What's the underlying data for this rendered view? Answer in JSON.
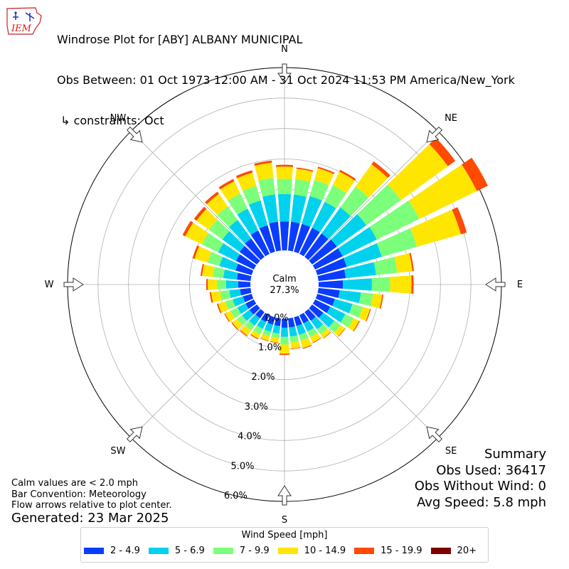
{
  "header": {
    "line1": "Windrose Plot for [ABY] ALBANY MUNICIPAL",
    "line2": "Obs Between: 01 Oct 1973 12:00 AM - 31 Oct 2024 11:53 PM America/New_York",
    "line3": " ↳ constraints: Oct"
  },
  "logo": {
    "text": "IEM"
  },
  "notes": {
    "line1": "Calm values are < 2.0 mph",
    "line2": "Bar Convention: Meteorology",
    "line3": "Flow arrows relative to plot center."
  },
  "generated": "Generated: 23 Mar 2025",
  "summary": {
    "title": "Summary",
    "obs_used": "Obs Used: 36417",
    "obs_without_wind": "Obs Without Wind: 0",
    "avg_speed": "Avg Speed: 5.8 mph"
  },
  "legend": {
    "title": "Wind Speed [mph]",
    "items": [
      {
        "label": "2 - 4.9",
        "color": "#0a3cff"
      },
      {
        "label": "5 - 6.9",
        "color": "#00d2ee"
      },
      {
        "label": "7 - 9.9",
        "color": "#7cff7a"
      },
      {
        "label": "10 - 14.9",
        "color": "#ffe600"
      },
      {
        "label": "15 - 19.9",
        "color": "#ff4a00"
      },
      {
        "label": "20+",
        "color": "#7f0000"
      }
    ]
  },
  "chart_data": {
    "type": "windrose",
    "calm_label": "Calm",
    "calm_value": "27.3%",
    "radial_unit": "%",
    "radial_ticks": [
      "0.0%",
      "1.0%",
      "2.0%",
      "3.0%",
      "4.0%",
      "5.0%",
      "6.0%"
    ],
    "radial_max": 6.0,
    "direction_labels": [
      "N",
      "NE",
      "E",
      "SE",
      "S",
      "SW",
      "W",
      "NW"
    ],
    "direction_label_angles": [
      0,
      45,
      90,
      135,
      180,
      225,
      270,
      315
    ],
    "sector_width_deg": 10,
    "speed_bins": [
      "2 - 4.9",
      "5 - 6.9",
      "7 - 9.9",
      "10 - 14.9",
      "15 - 19.9",
      "20+"
    ],
    "sectors": [
      {
        "dir": 0,
        "values": [
          0.95,
          0.9,
          0.5,
          0.4,
          0.06,
          0.0
        ]
      },
      {
        "dir": 10,
        "values": [
          0.95,
          0.9,
          0.5,
          0.35,
          0.04,
          0.0
        ]
      },
      {
        "dir": 20,
        "values": [
          0.95,
          0.95,
          0.55,
          0.4,
          0.05,
          0.0
        ]
      },
      {
        "dir": 30,
        "values": [
          0.95,
          0.95,
          0.6,
          0.5,
          0.06,
          0.0
        ]
      },
      {
        "dir": 40,
        "values": [
          0.95,
          1.05,
          0.85,
          0.9,
          0.12,
          0.0
        ]
      },
      {
        "dir": 50,
        "values": [
          1.0,
          1.2,
          1.4,
          1.9,
          0.3,
          0.0
        ]
      },
      {
        "dir": 60,
        "values": [
          1.0,
          1.25,
          1.55,
          2.1,
          0.4,
          0.0
        ]
      },
      {
        "dir": 70,
        "values": [
          1.0,
          1.2,
          1.2,
          1.5,
          0.2,
          0.0
        ]
      },
      {
        "dir": 80,
        "values": [
          0.9,
          1.0,
          0.7,
          0.5,
          0.05,
          0.0
        ]
      },
      {
        "dir": 90,
        "values": [
          0.8,
          0.95,
          0.6,
          0.7,
          0.07,
          0.0
        ]
      },
      {
        "dir": 100,
        "values": [
          0.7,
          0.7,
          0.4,
          0.3,
          0.04,
          0.0
        ]
      },
      {
        "dir": 110,
        "values": [
          0.6,
          0.6,
          0.35,
          0.25,
          0.03,
          0.0
        ]
      },
      {
        "dir": 120,
        "values": [
          0.55,
          0.55,
          0.3,
          0.2,
          0.03,
          0.0
        ]
      },
      {
        "dir": 130,
        "values": [
          0.45,
          0.45,
          0.25,
          0.18,
          0.02,
          0.0
        ]
      },
      {
        "dir": 140,
        "values": [
          0.35,
          0.35,
          0.2,
          0.15,
          0.02,
          0.0
        ]
      },
      {
        "dir": 150,
        "values": [
          0.3,
          0.3,
          0.2,
          0.2,
          0.02,
          0.0
        ]
      },
      {
        "dir": 160,
        "values": [
          0.3,
          0.3,
          0.2,
          0.25,
          0.03,
          0.0
        ]
      },
      {
        "dir": 170,
        "values": [
          0.3,
          0.3,
          0.2,
          0.2,
          0.02,
          0.0
        ]
      },
      {
        "dir": 180,
        "values": [
          0.3,
          0.3,
          0.25,
          0.3,
          0.04,
          0.0
        ]
      },
      {
        "dir": 190,
        "values": [
          0.25,
          0.25,
          0.15,
          0.15,
          0.02,
          0.0
        ]
      },
      {
        "dir": 200,
        "values": [
          0.25,
          0.25,
          0.15,
          0.15,
          0.02,
          0.0
        ]
      },
      {
        "dir": 210,
        "values": [
          0.25,
          0.25,
          0.2,
          0.15,
          0.03,
          0.0
        ]
      },
      {
        "dir": 220,
        "values": [
          0.25,
          0.3,
          0.2,
          0.2,
          0.03,
          0.0
        ]
      },
      {
        "dir": 230,
        "values": [
          0.3,
          0.3,
          0.2,
          0.2,
          0.03,
          0.0
        ]
      },
      {
        "dir": 240,
        "values": [
          0.3,
          0.3,
          0.25,
          0.2,
          0.03,
          0.0
        ]
      },
      {
        "dir": 250,
        "values": [
          0.3,
          0.35,
          0.25,
          0.25,
          0.04,
          0.0
        ]
      },
      {
        "dir": 260,
        "values": [
          0.35,
          0.35,
          0.3,
          0.3,
          0.05,
          0.0
        ]
      },
      {
        "dir": 270,
        "values": [
          0.4,
          0.4,
          0.3,
          0.3,
          0.05,
          0.0
        ]
      },
      {
        "dir": 280,
        "values": [
          0.45,
          0.45,
          0.35,
          0.35,
          0.05,
          0.0
        ]
      },
      {
        "dir": 290,
        "values": [
          0.55,
          0.55,
          0.4,
          0.45,
          0.07,
          0.0
        ]
      },
      {
        "dir": 300,
        "values": [
          0.65,
          0.65,
          0.6,
          0.6,
          0.1,
          0.0
        ]
      },
      {
        "dir": 310,
        "values": [
          0.7,
          0.7,
          0.55,
          0.5,
          0.1,
          0.0
        ]
      },
      {
        "dir": 320,
        "values": [
          0.75,
          0.75,
          0.55,
          0.5,
          0.09,
          0.0
        ]
      },
      {
        "dir": 330,
        "values": [
          0.85,
          0.8,
          0.55,
          0.45,
          0.08,
          0.0
        ]
      },
      {
        "dir": 340,
        "values": [
          0.9,
          0.85,
          0.5,
          0.45,
          0.08,
          0.0
        ]
      },
      {
        "dir": 350,
        "values": [
          0.95,
          0.9,
          0.55,
          0.5,
          0.07,
          0.0
        ]
      }
    ],
    "grid": true
  }
}
